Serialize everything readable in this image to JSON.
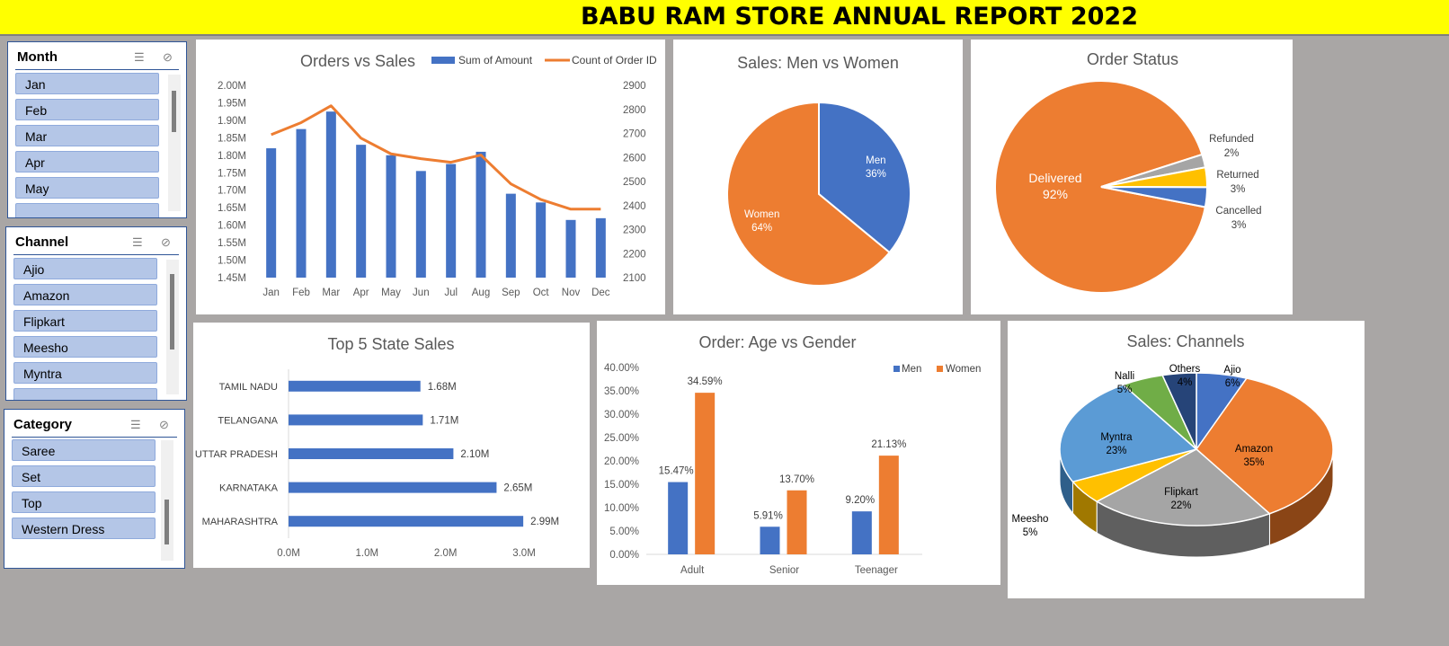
{
  "title": "BABU RAM STORE ANNUAL REPORT 2022",
  "slicers": {
    "month": {
      "title": "Month",
      "items": [
        "Jan",
        "Feb",
        "Mar",
        "Apr",
        "May"
      ]
    },
    "channel": {
      "title": "Channel",
      "items": [
        "Ajio",
        "Amazon",
        "Flipkart",
        "Meesho",
        "Myntra"
      ]
    },
    "category": {
      "title": "Category",
      "items": [
        "Saree",
        "Set",
        "Top",
        "Western Dress"
      ]
    },
    "icons": [
      "multi-select-icon",
      "clear-filter-icon"
    ]
  },
  "chart_data": [
    {
      "id": "orders_vs_sales",
      "type": "bar",
      "title": "Orders vs Sales",
      "categories": [
        "Jan",
        "Feb",
        "Mar",
        "Apr",
        "May",
        "Jun",
        "Jul",
        "Aug",
        "Sep",
        "Oct",
        "Nov",
        "Dec"
      ],
      "series": [
        {
          "name": "Sum of Amount",
          "type": "bar",
          "axis": "left",
          "color": "#4472c4",
          "values": [
            1.82,
            1.875,
            1.925,
            1.83,
            1.8,
            1.755,
            1.775,
            1.81,
            1.69,
            1.665,
            1.615,
            1.62
          ]
        },
        {
          "name": "Count of Order ID",
          "type": "line",
          "axis": "right",
          "color": "#ed7d31",
          "values": [
            2695,
            2745,
            2815,
            2680,
            2615,
            2595,
            2580,
            2610,
            2490,
            2425,
            2385,
            2385
          ]
        }
      ],
      "y_left": {
        "min": 1.45,
        "max": 2.0,
        "step": 0.05,
        "ticks": [
          "2.00M",
          "1.95M",
          "1.90M",
          "1.85M",
          "1.80M",
          "1.75M",
          "1.70M",
          "1.65M",
          "1.60M",
          "1.55M",
          "1.50M",
          "1.45M"
        ]
      },
      "y_right": {
        "min": 2100,
        "max": 2900,
        "step": 100,
        "ticks": [
          "2900",
          "2800",
          "2700",
          "2600",
          "2500",
          "2400",
          "2300",
          "2200",
          "2100"
        ]
      },
      "legend": "top-right"
    },
    {
      "id": "men_vs_women",
      "type": "pie",
      "title": "Sales: Men vs Women",
      "slices": [
        {
          "label": "Men",
          "value": 36,
          "text": "36%",
          "color": "#4472c4"
        },
        {
          "label": "Women",
          "value": 64,
          "text": "64%",
          "color": "#ed7d31"
        }
      ]
    },
    {
      "id": "order_status",
      "type": "pie",
      "title": "Order Status",
      "slices": [
        {
          "label": "Delivered",
          "value": 92,
          "text": "92%",
          "color": "#ed7d31"
        },
        {
          "label": "Refunded",
          "value": 2,
          "text": "2%",
          "color": "#a5a5a5"
        },
        {
          "label": "Returned",
          "value": 3,
          "text": "3%",
          "color": "#ffc000"
        },
        {
          "label": "Cancelled",
          "value": 3,
          "text": "3%",
          "color": "#4472c4"
        }
      ]
    },
    {
      "id": "top5_state",
      "type": "bar",
      "orientation": "horizontal",
      "title": "Top 5 State Sales",
      "categories": [
        "TAMIL NADU",
        "TELANGANA",
        "UTTAR PRADESH",
        "KARNATAKA",
        "MAHARASHTRA"
      ],
      "values": [
        1.68,
        1.71,
        2.1,
        2.65,
        2.99
      ],
      "labels": [
        "1.68M",
        "1.71M",
        "2.10M",
        "2.65M",
        "2.99M"
      ],
      "x_ticks": [
        "0.0M",
        "1.0M",
        "2.0M",
        "3.0M"
      ],
      "xlim": [
        0,
        3.0
      ],
      "color": "#4472c4"
    },
    {
      "id": "age_vs_gender",
      "type": "bar",
      "title": "Order: Age vs Gender",
      "categories": [
        "Adult",
        "Senior",
        "Teenager"
      ],
      "series": [
        {
          "name": "Men",
          "color": "#4472c4",
          "values": [
            15.47,
            5.91,
            9.2
          ],
          "labels": [
            "15.47%",
            "5.91%",
            "9.20%"
          ]
        },
        {
          "name": "Women",
          "color": "#ed7d31",
          "values": [
            34.59,
            13.7,
            21.13
          ],
          "labels": [
            "34.59%",
            "13.70%",
            "21.13%"
          ]
        }
      ],
      "ylim": [
        0,
        40
      ],
      "y_ticks": [
        "40.00%",
        "35.00%",
        "30.00%",
        "25.00%",
        "20.00%",
        "15.00%",
        "10.00%",
        "5.00%",
        "0.00%"
      ],
      "legend": "top-right"
    },
    {
      "id": "channels",
      "type": "pie",
      "title": "Sales: Channels",
      "slices": [
        {
          "label": "Ajio",
          "value": 6,
          "text": "6%",
          "color": "#4472c4"
        },
        {
          "label": "Amazon",
          "value": 35,
          "text": "35%",
          "color": "#ed7d31"
        },
        {
          "label": "Flipkart",
          "value": 22,
          "text": "22%",
          "color": "#a5a5a5"
        },
        {
          "label": "Meesho",
          "value": 5,
          "text": "5%",
          "color": "#ffc000"
        },
        {
          "label": "Myntra",
          "value": 23,
          "text": "23%",
          "color": "#5b9bd5"
        },
        {
          "label": "Nalli",
          "value": 5,
          "text": "5%",
          "color": "#70ad47"
        },
        {
          "label": "Others",
          "value": 4,
          "text": "4%",
          "color": "#264478"
        }
      ]
    }
  ]
}
